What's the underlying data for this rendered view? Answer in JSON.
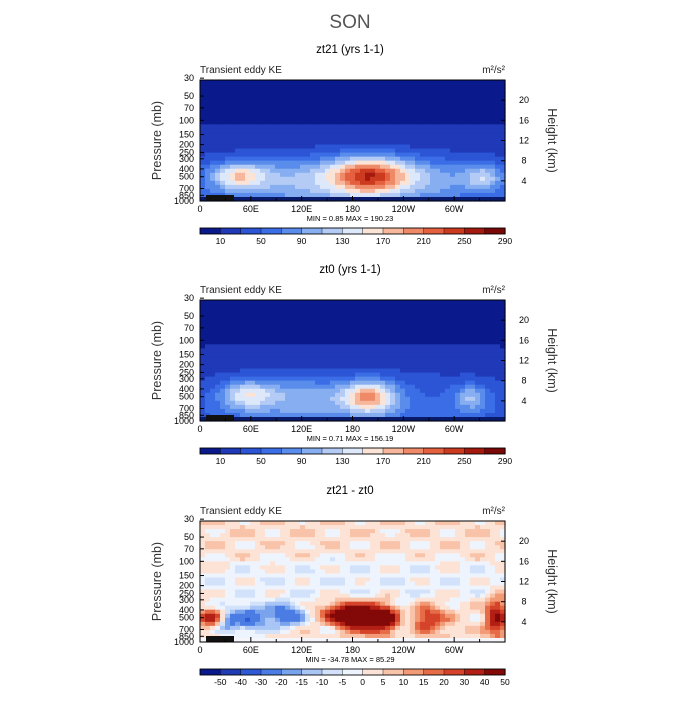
{
  "figure": {
    "title": "SON"
  },
  "axes": {
    "x_tick_labels": [
      "0",
      "60E",
      "120E",
      "180",
      "120W",
      "60W"
    ],
    "pressure_ticks": [
      "30",
      "50",
      "70",
      "100",
      "150",
      "200",
      "250",
      "300",
      "400",
      "500",
      "700",
      "850",
      "1000"
    ],
    "height_ticks": [
      "20",
      "16",
      "12",
      "8",
      "4"
    ],
    "left_label": "Pressure (mb)",
    "right_label": "Height (km)"
  },
  "chart_data": [
    {
      "type": "heatmap",
      "title": "zt21 (yrs 1-1)",
      "subtitle": "Transient eddy KE",
      "units": "m²/s²",
      "stats": {
        "min_label": "MIN =",
        "min": "0.85",
        "max_label": "MAX =",
        "max": "190.23"
      },
      "colorbar_labels": [
        "10",
        "50",
        "90",
        "130",
        "170",
        "210",
        "250",
        "290"
      ],
      "xlim": [
        0,
        360
      ],
      "ylim_pressure_mb": [
        1000,
        30
      ],
      "ylim_height_km": [
        0,
        24
      ]
    },
    {
      "type": "heatmap",
      "title": "zt0 (yrs 1-1)",
      "subtitle": "Transient eddy KE",
      "units": "m²/s²",
      "stats": {
        "min_label": "MIN =",
        "min": "0.71",
        "max_label": "MAX =",
        "max": "156.19"
      },
      "colorbar_labels": [
        "10",
        "50",
        "90",
        "130",
        "170",
        "210",
        "250",
        "290"
      ],
      "xlim": [
        0,
        360
      ],
      "ylim_pressure_mb": [
        1000,
        30
      ],
      "ylim_height_km": [
        0,
        24
      ]
    },
    {
      "type": "heatmap",
      "title": "zt21 - zt0",
      "subtitle": "Transient eddy KE",
      "units": "m²/s²",
      "stats": {
        "min_label": "MIN =",
        "min": "-34.78",
        "max_label": "MAX =",
        "max": "85.29"
      },
      "colorbar_labels": [
        "-50",
        "-40",
        "-30",
        "-20",
        "-15",
        "-10",
        "-5",
        "0",
        "5",
        "10",
        "15",
        "20",
        "30",
        "40",
        "50"
      ],
      "xlim": [
        0,
        360
      ],
      "ylim_pressure_mb": [
        1000,
        30
      ],
      "ylim_height_km": [
        0,
        24
      ]
    }
  ],
  "palettes": {
    "sequential": [
      "#0a1a8c",
      "#1f39b8",
      "#2c55d6",
      "#3b6ee6",
      "#5a8ceb",
      "#86aef0",
      "#b4ccf5",
      "#dde8fb",
      "#fbe3d6",
      "#f6b79c",
      "#ef8a68",
      "#e4603f",
      "#cc3a20",
      "#a51a0e",
      "#7a0806"
    ],
    "diverging": [
      "#0a1a8c",
      "#1f3cb5",
      "#2f5ad5",
      "#4a7ce3",
      "#7aa3ee",
      "#a9c5f5",
      "#d2e2fb",
      "#eef4fd",
      "#fde3d6",
      "#f8c3a8",
      "#f29a76",
      "#e66c47",
      "#d5432a",
      "#b21f14",
      "#830808"
    ]
  }
}
